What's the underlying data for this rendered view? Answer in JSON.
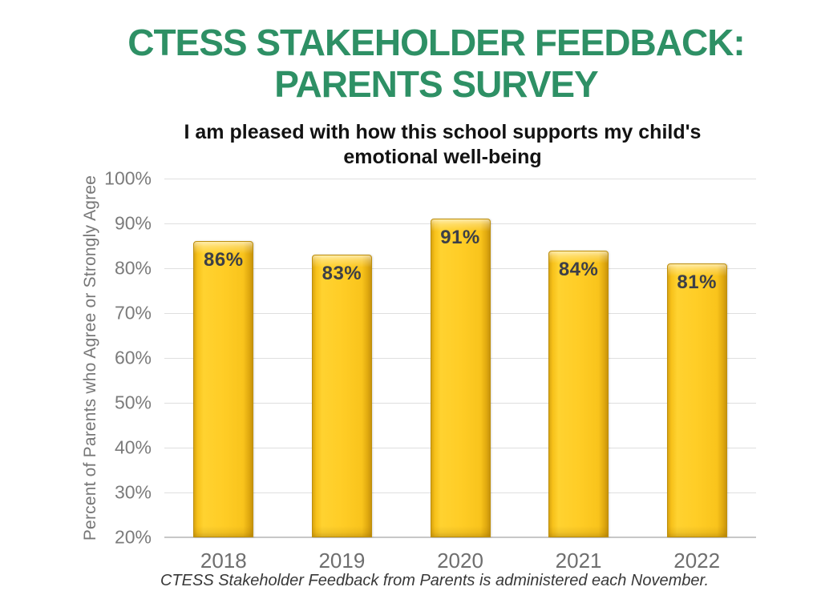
{
  "title": {
    "line1": "CTESS STAKEHOLDER FEEDBACK:",
    "line2": "PARENTS SURVEY",
    "color": "#2E9065"
  },
  "subtitle": {
    "line1": "I am pleased with how this school supports my child's",
    "line2": "emotional well-being"
  },
  "caption": "CTESS Stakeholder Feedback from Parents is administered each November.",
  "chart_data": {
    "type": "bar",
    "title": "I am pleased with how this school supports my child's emotional well-being",
    "categories": [
      "2018",
      "2019",
      "2020",
      "2021",
      "2022"
    ],
    "values": [
      86,
      83,
      91,
      84,
      81
    ],
    "data_labels": [
      "86%",
      "83%",
      "91%",
      "84%",
      "81%"
    ],
    "xlabel": "",
    "ylabel": "Percent of Parents who Agree or Strongly Agree",
    "ylim": [
      20,
      100
    ],
    "ytick_step": 10,
    "yticks": [
      "100%",
      "90%",
      "80%",
      "70%",
      "60%",
      "50%",
      "40%",
      "30%",
      "20%"
    ],
    "grid": true,
    "legend": false,
    "colors": {
      "bar_fill": "#FDC91F",
      "bar_border": "#BE8F0B",
      "bar_value_label": "#3C3F48",
      "axis_text": "#7B7B7B",
      "gridline": "#DFDFDF",
      "title_green": "#2E9065"
    }
  }
}
